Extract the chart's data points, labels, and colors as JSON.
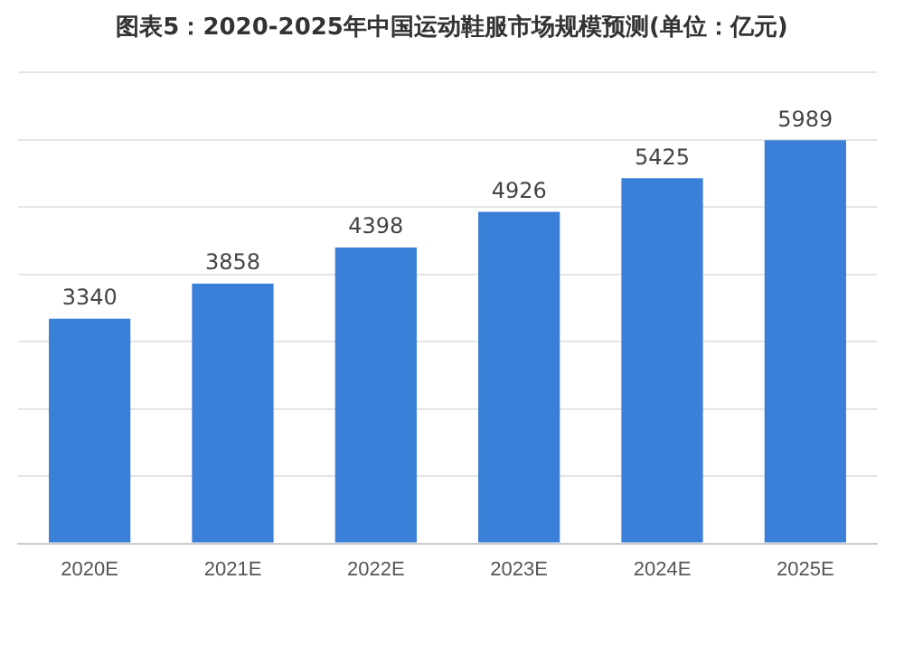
{
  "chart_data": {
    "type": "bar",
    "title": "图表5：2020-2025年中国运动鞋服市场规模预测(单位：亿元)",
    "categories": [
      "2020E",
      "2021E",
      "2022E",
      "2023E",
      "2024E",
      "2025E"
    ],
    "values": [
      3340,
      3858,
      4398,
      4926,
      5425,
      5989
    ],
    "color": "#3a7fd8",
    "ylim": [
      0,
      7000
    ],
    "yticks": [
      {
        "value": 0,
        "label": null
      },
      {
        "value": 1000,
        "label": null
      },
      {
        "value": 2000,
        "label": null
      },
      {
        "value": 3000,
        "label": null
      },
      {
        "value": 4000,
        "label": null
      },
      {
        "value": 5000,
        "label": null
      },
      {
        "value": 6000,
        "label": null
      },
      {
        "value": 7000,
        "label": null
      }
    ],
    "grid": "y",
    "tick_labels": "x",
    "data_labels": true
  }
}
